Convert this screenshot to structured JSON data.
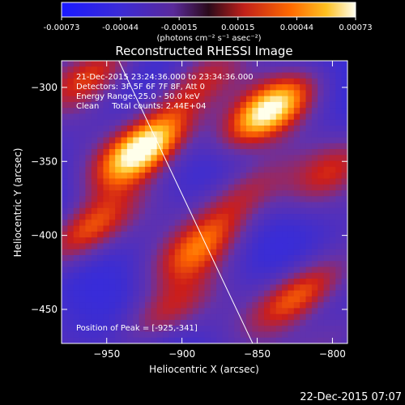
{
  "colorbar": {
    "tick_labels": [
      "-0.00073",
      "-0.00044",
      "-0.00015",
      "0.00015",
      "0.00044",
      "0.00073"
    ],
    "unit_label": "(photons cm⁻² s⁻¹ asec⁻²)",
    "range": [
      -0.00073,
      0.00073
    ]
  },
  "chart_data": {
    "type": "heatmap",
    "title": "Reconstructed RHESSI Image",
    "xlabel": "Heliocentric X (arcsec)",
    "ylabel": "Heliocentric Y (arcsec)",
    "xlim": [
      -980,
      -790
    ],
    "ylim": [
      -473,
      -282
    ],
    "x_ticks": [
      -950,
      -900,
      -850,
      -800
    ],
    "y_ticks": [
      -300,
      -350,
      -400,
      -450
    ],
    "x_tick_labels": [
      "−950",
      "−900",
      "−850",
      "−800"
    ],
    "y_tick_labels": [
      "−300",
      "−350",
      "−400",
      "−450"
    ],
    "annotations": [
      "21-Dec-2015 23:24:36.000 to 23:34:36.000",
      "Detectors: 3F 5F 6F 7F 8F, Att 0",
      "Energy Range: 25.0 - 50.0 keV",
      "Clean     Total counts: 2.44E+04"
    ],
    "peak_label": "Position of Peak = [-925,-341]",
    "peak": [
      -925,
      -341
    ],
    "limb_line": [
      [
        -942,
        -282
      ],
      [
        -853,
        -473
      ]
    ],
    "colormap": "rainbow-like: blue-purple-red-orange-yellow",
    "sources": [
      {
        "x": -925,
        "y": -341,
        "amp": 1.0
      },
      {
        "x": -843,
        "y": -316,
        "amp": 0.9
      },
      {
        "x": -964,
        "y": -397,
        "amp": 0.65
      },
      {
        "x": -888,
        "y": -408,
        "amp": 0.55
      },
      {
        "x": -822,
        "y": -440,
        "amp": 0.7
      },
      {
        "x": -958,
        "y": -290,
        "amp": 0.55
      },
      {
        "x": -892,
        "y": -300,
        "amp": 0.45
      },
      {
        "x": -913,
        "y": -453,
        "amp": 0.45
      },
      {
        "x": -859,
        "y": -372,
        "amp": 0.45
      },
      {
        "x": -800,
        "y": -356,
        "amp": 0.4
      },
      {
        "x": -800,
        "y": -470,
        "amp": 0.3
      }
    ]
  },
  "footer": {
    "date": "22-Dec-2015 07:07"
  }
}
